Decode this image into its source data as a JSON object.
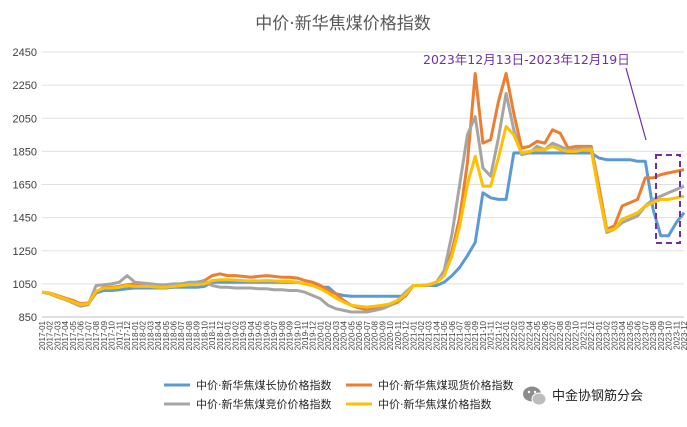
{
  "chart_data": {
    "type": "line",
    "title": "中价·新华焦煤价格指数",
    "ylim": [
      850,
      2450
    ],
    "yticks": [
      850,
      1050,
      1250,
      1450,
      1650,
      1850,
      2050,
      2250,
      2450
    ],
    "grid": "horizontal",
    "legend_position": "bottom",
    "x": [
      "2017-01",
      "2017-02",
      "2017-03",
      "2017-04",
      "2017-05",
      "2017-06",
      "2017-07",
      "2017-08",
      "2017-09",
      "2017-10",
      "2017-11",
      "2017-12",
      "2018-01",
      "2018-02",
      "2018-03",
      "2018-04",
      "2018-05",
      "2018-06",
      "2018-07",
      "2018-08",
      "2018-09",
      "2018-10",
      "2018-11",
      "2018-12",
      "2019-01",
      "2019-02",
      "2019-03",
      "2019-04",
      "2019-05",
      "2019-06",
      "2019-07",
      "2019-08",
      "2019-09",
      "2019-10",
      "2019-11",
      "2019-12",
      "2020-01",
      "2020-02",
      "2020-03",
      "2020-04",
      "2020-05",
      "2020-06",
      "2020-07",
      "2020-08",
      "2020-09",
      "2020-10",
      "2020-11",
      "2020-12",
      "2021-01",
      "2021-02",
      "2021-03",
      "2021-04",
      "2021-05",
      "2021-06",
      "2021-07",
      "2021-08",
      "2021-09",
      "2021-10",
      "2021-11",
      "2021-12",
      "2022-01",
      "2022-02",
      "2022-03",
      "2022-04",
      "2022-05",
      "2022-06",
      "2022-07",
      "2022-08",
      "2022-09",
      "2022-10",
      "2022-11",
      "2022-12",
      "2023-01",
      "2023-02",
      "2023-03",
      "2023-04",
      "2023-05",
      "2023-06",
      "2023-07",
      "2023-08",
      "2023-09",
      "2023-10",
      "2023-11",
      "2023-12"
    ],
    "series": [
      {
        "name": "中价·新华焦煤长协价格指数",
        "color": "#5b9bd5",
        "values": [
          1000,
          990,
          975,
          960,
          945,
          925,
          930,
          995,
          1010,
          1010,
          1015,
          1020,
          1025,
          1025,
          1025,
          1025,
          1025,
          1030,
          1030,
          1030,
          1030,
          1035,
          1060,
          1060,
          1060,
          1060,
          1060,
          1060,
          1060,
          1060,
          1060,
          1060,
          1060,
          1060,
          1050,
          1040,
          1030,
          1030,
          990,
          980,
          975,
          975,
          975,
          975,
          975,
          975,
          975,
          975,
          1040,
          1040,
          1040,
          1040,
          1060,
          1100,
          1150,
          1220,
          1300,
          1600,
          1570,
          1560,
          1560,
          1840,
          1840,
          1840,
          1840,
          1840,
          1840,
          1840,
          1840,
          1840,
          1840,
          1840,
          1810,
          1800,
          1800,
          1800,
          1800,
          1790,
          1790,
          1500,
          1340,
          1340,
          1420,
          1480
        ]
      },
      {
        "name": "中价·新华焦煤现货价格指数",
        "color": "#ed7d31",
        "values": [
          1000,
          995,
          980,
          965,
          950,
          930,
          935,
          1000,
          1030,
          1030,
          1035,
          1045,
          1050,
          1050,
          1050,
          1045,
          1040,
          1045,
          1050,
          1055,
          1060,
          1070,
          1100,
          1110,
          1100,
          1100,
          1095,
          1090,
          1095,
          1100,
          1095,
          1090,
          1090,
          1085,
          1070,
          1060,
          1040,
          1010,
          990,
          950,
          920,
          905,
          895,
          900,
          910,
          920,
          940,
          980,
          1040,
          1040,
          1045,
          1060,
          1110,
          1250,
          1450,
          1780,
          2320,
          1900,
          1920,
          2150,
          2320,
          2080,
          1870,
          1880,
          1910,
          1900,
          1980,
          1960,
          1870,
          1880,
          1880,
          1880,
          1640,
          1380,
          1400,
          1520,
          1540,
          1560,
          1690,
          1690,
          1710,
          1720,
          1730,
          1740
        ]
      },
      {
        "name": "中价·新华焦煤竞价价格指数",
        "color": "#a5a5a5",
        "values": [
          1000,
          990,
          970,
          955,
          935,
          915,
          925,
          1040,
          1045,
          1050,
          1060,
          1100,
          1060,
          1055,
          1050,
          1045,
          1045,
          1050,
          1050,
          1060,
          1060,
          1065,
          1040,
          1030,
          1030,
          1025,
          1025,
          1025,
          1020,
          1020,
          1015,
          1015,
          1010,
          1010,
          1000,
          980,
          960,
          920,
          900,
          890,
          880,
          880,
          880,
          890,
          900,
          920,
          950,
          1000,
          1040,
          1040,
          1040,
          1060,
          1130,
          1350,
          1650,
          1950,
          2060,
          1750,
          1700,
          1930,
          2200,
          1980,
          1830,
          1840,
          1880,
          1860,
          1900,
          1880,
          1860,
          1860,
          1870,
          1870,
          1600,
          1360,
          1380,
          1420,
          1440,
          1460,
          1520,
          1560,
          1580,
          1600,
          1620,
          1640
        ]
      },
      {
        "name": "中价·新华焦煤价格指数",
        "color": "#ffc000",
        "values": [
          1000,
          993,
          975,
          960,
          942,
          925,
          932,
          1005,
          1025,
          1025,
          1030,
          1040,
          1035,
          1035,
          1035,
          1030,
          1030,
          1035,
          1040,
          1045,
          1045,
          1050,
          1070,
          1075,
          1075,
          1073,
          1070,
          1068,
          1068,
          1070,
          1068,
          1065,
          1065,
          1060,
          1050,
          1040,
          1020,
          995,
          965,
          940,
          920,
          915,
          910,
          915,
          920,
          930,
          950,
          985,
          1040,
          1040,
          1045,
          1060,
          1100,
          1220,
          1400,
          1650,
          1820,
          1640,
          1640,
          1810,
          2000,
          1950,
          1840,
          1850,
          1860,
          1860,
          1880,
          1860,
          1850,
          1850,
          1860,
          1860,
          1600,
          1370,
          1380,
          1440,
          1460,
          1480,
          1520,
          1540,
          1560,
          1560,
          1570,
          1580
        ]
      }
    ],
    "annotation": "2023年12月13日-2023年12月19日"
  },
  "watermark": "中金协钢筋分会"
}
